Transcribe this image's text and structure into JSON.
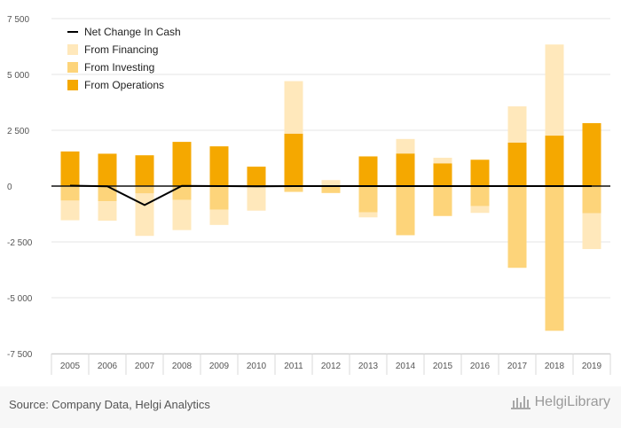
{
  "chart_data": {
    "type": "bar",
    "stacked": true,
    "categories": [
      "2005",
      "2006",
      "2007",
      "2008",
      "2009",
      "2010",
      "2011",
      "2012",
      "2013",
      "2014",
      "2015",
      "2016",
      "2017",
      "2018",
      "2019"
    ],
    "series": [
      {
        "name": "From Operations",
        "kind": "bar",
        "color": "#f5a800",
        "values": [
          1550,
          1450,
          1380,
          1980,
          1780,
          870,
          2350,
          0,
          1330,
          1460,
          1020,
          1180,
          1950,
          2260,
          2820
        ]
      },
      {
        "name": "From Investing",
        "kind": "bar",
        "color": "#fdd47a",
        "values": [
          -650,
          -680,
          -330,
          -620,
          -1060,
          0,
          -260,
          -310,
          -1170,
          -2200,
          -1340,
          -900,
          -3660,
          -6480,
          -1220
        ]
      },
      {
        "name": "From Financing",
        "kind": "bar",
        "color": "#ffe8bb",
        "values": [
          -880,
          -870,
          -1900,
          -1350,
          -680,
          -1100,
          2350,
          270,
          -230,
          650,
          250,
          -300,
          1620,
          4080,
          -1600
        ]
      },
      {
        "name": "Net Change In Cash",
        "kind": "line",
        "color": "#000000",
        "values": [
          20,
          -10,
          -850,
          10,
          0,
          -10,
          0,
          0,
          0,
          0,
          0,
          0,
          0,
          0,
          0
        ]
      }
    ],
    "legend_order": [
      "Net Change In Cash",
      "From Financing",
      "From Investing",
      "From Operations"
    ],
    "legend_position": "top-left",
    "ylim": [
      -7500,
      7500
    ],
    "yticks": [
      -7500,
      -5000,
      -2500,
      0,
      2500,
      5000,
      7500
    ],
    "ytick_labels": [
      "-7 500",
      "-5 000",
      "-2 500",
      "0",
      "2 500",
      "5 000",
      "7 500"
    ],
    "grid": true,
    "title": "",
    "xlabel": "",
    "ylabel": ""
  },
  "footer": {
    "source": "Source: Company Data, Helgi Analytics",
    "logo_text": "HelgiLibrary"
  }
}
